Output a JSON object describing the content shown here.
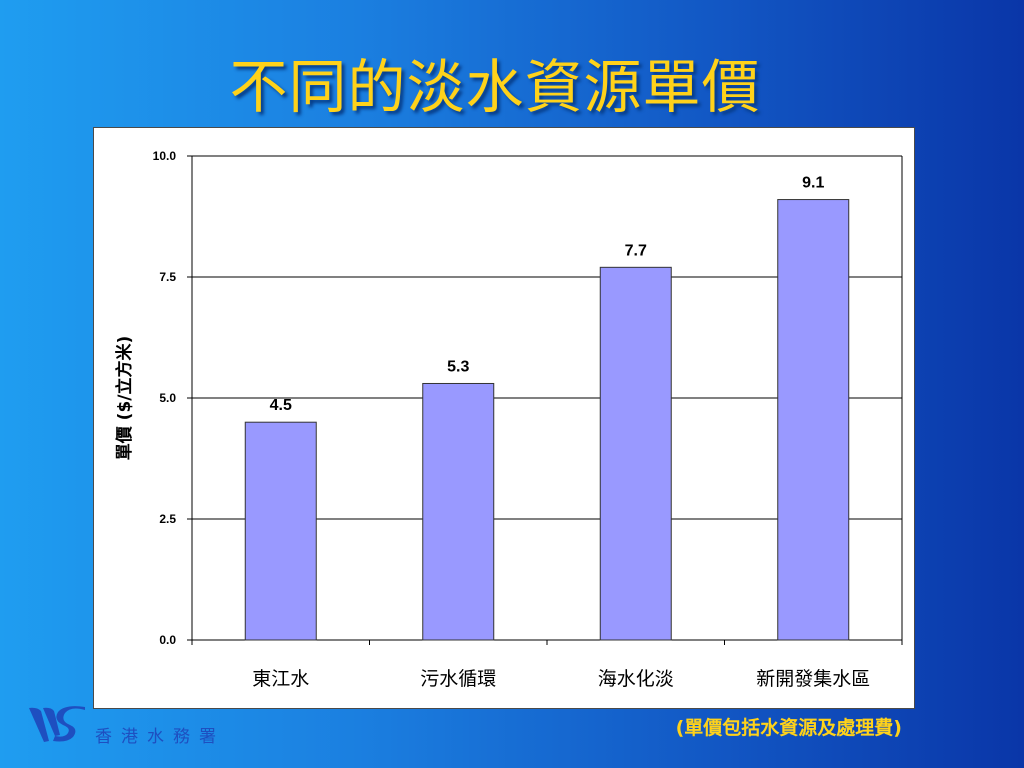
{
  "slide": {
    "title": "不同的淡水資源單價",
    "footnote": "(單價包括水資源及處理費)",
    "org_name": "香港水務署"
  },
  "colors": {
    "background_light": "#1f9df0",
    "background_dark": "#0a36a8",
    "title": "#ffd21a",
    "bar_fill": "#9999ff",
    "bar_stroke": "#333333",
    "gridline": "#000000"
  },
  "chart_data": {
    "type": "bar",
    "title": "",
    "xlabel": "",
    "ylabel": "單價 ($/立方米)",
    "categories": [
      "東江水",
      "污水循環",
      "海水化淡",
      "新開發集水區"
    ],
    "values": [
      4.5,
      5.3,
      7.7,
      9.1
    ],
    "data_labels": [
      "4.5",
      "5.3",
      "7.7",
      "9.1"
    ],
    "ylim": [
      0,
      10
    ],
    "yticks": [
      0,
      2.5,
      5.0,
      7.5,
      10.0
    ],
    "ytick_labels": [
      "0.0",
      "2.5",
      "5.0",
      "7.5",
      "10.0"
    ],
    "grid": true,
    "legend": "none"
  }
}
